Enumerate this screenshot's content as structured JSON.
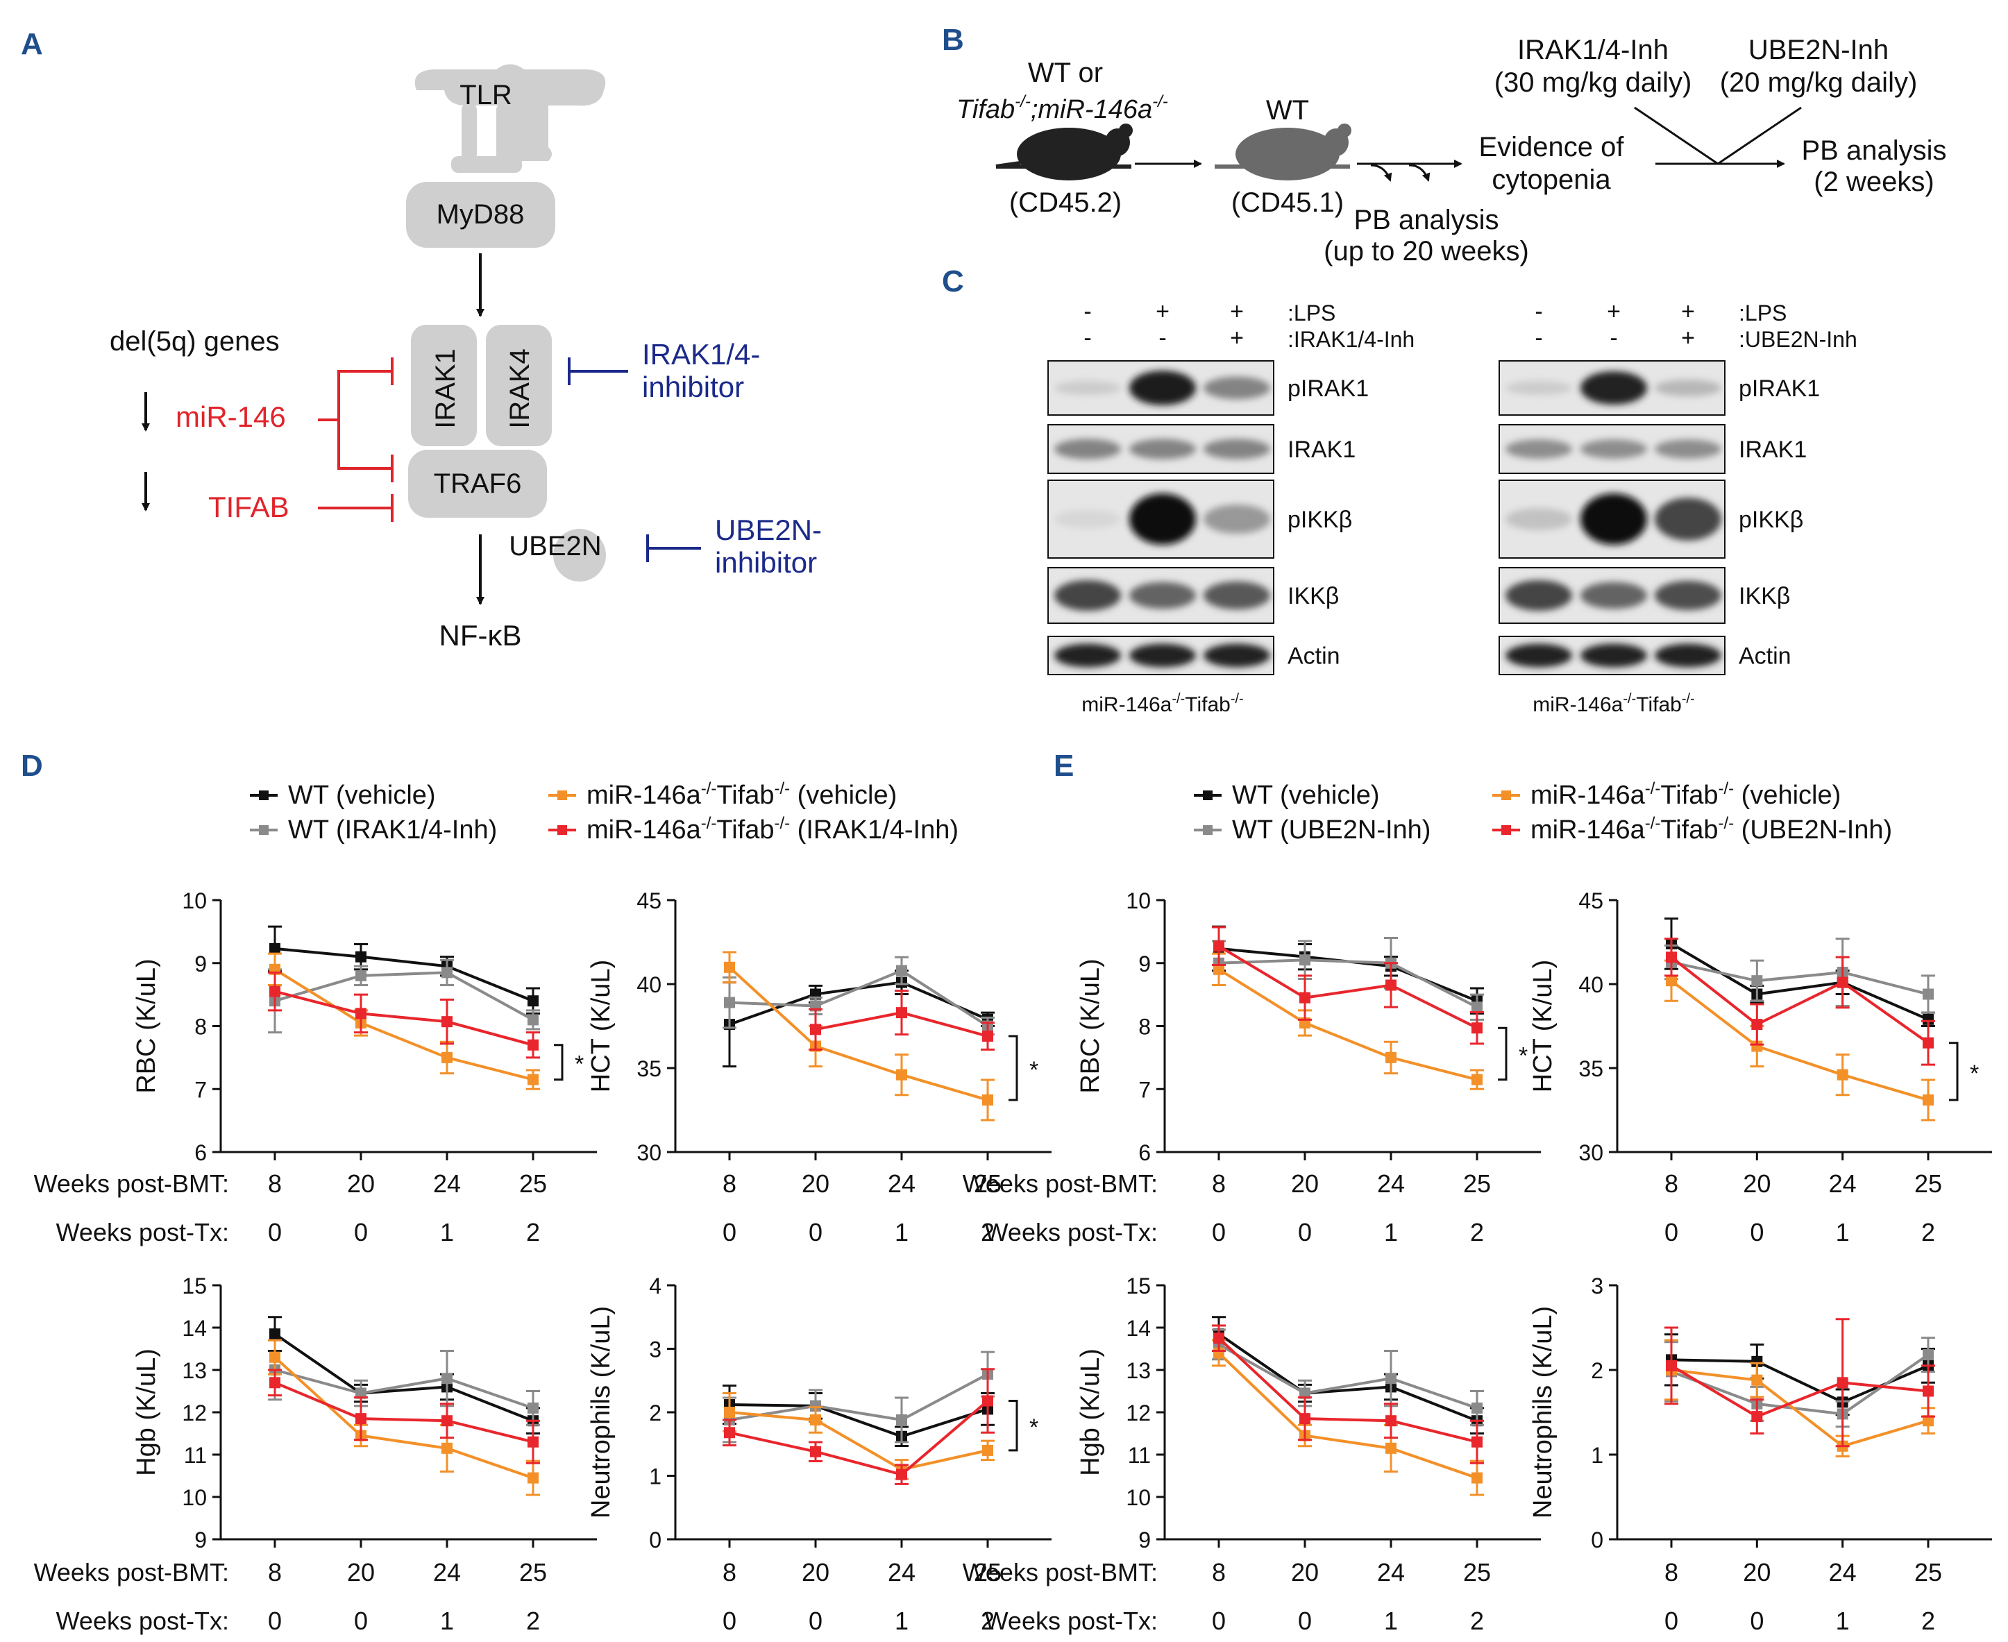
{
  "panels": {
    "A": "A",
    "B": "B",
    "C": "C",
    "D": "D",
    "E": "E"
  },
  "colors": {
    "wt_vehicle": "#111111",
    "wt_inh": "#8a8a8a",
    "ko_vehicle": "#f39028",
    "ko_inh": "#e8262c",
    "inhibit_red": "#e0242b",
    "inhibit_blue": "#1b2a8a",
    "panel_letter": "#1f4e8c"
  },
  "panelA": {
    "tlr": "TLR",
    "myd88": "MyD88",
    "irak1": "IRAK1",
    "irak4": "IRAK4",
    "traf6": "TRAF6",
    "ube2n": "UBE2N",
    "nfkb": "NF-κB",
    "del5q": "del(5q) genes",
    "mir146": "miR-146",
    "tifab": "TIFAB",
    "irak_inh_line1": "IRAK1/4-",
    "irak_inh_line2": "inhibitor",
    "ube2n_inh_line1": "UBE2N-",
    "ube2n_inh_line2": "inhibitor"
  },
  "panelB": {
    "donor_line1": "WT or",
    "donor_line2": "Tifab",
    "donor_line2b": "-/-",
    "donor_line2c": ";miR-146a",
    "donor_line2d": "-/-",
    "donor_marker": "(CD45.2)",
    "recipient": "WT",
    "recipient_marker": "(CD45.1)",
    "pb1_line1": "PB analysis",
    "pb1_line2": "(up to 20 weeks)",
    "evidence_line1": "Evidence of",
    "evidence_line2": "cytopenia",
    "irak_line1": "IRAK1/4-Inh",
    "irak_line2": "(30 mg/kg daily)",
    "ube_line1": "UBE2N-Inh",
    "ube_line2": "(20 mg/kg daily)",
    "pb2_line1": "PB analysis",
    "pb2_line2": "(2 weeks)"
  },
  "panelC": {
    "blots": [
      {
        "lps": [
          "-",
          "+",
          "+"
        ],
        "inh": [
          "-",
          "-",
          "+"
        ],
        "lps_label": ":LPS",
        "inh_label": ":IRAK1/4-Inh",
        "genotype": "miR-146a",
        "genotype_sup1": "-/-",
        "genotype_mid": "Tifab",
        "genotype_sup2": "-/-",
        "rows": [
          {
            "label": "pIRAK1",
            "bands": [
              0.1,
              0.95,
              0.45
            ]
          },
          {
            "label": "IRAK1",
            "bands": [
              0.45,
              0.45,
              0.45
            ]
          },
          {
            "label": "pIKKβ",
            "bands": [
              0.05,
              1.0,
              0.35
            ]
          },
          {
            "label": "IKKβ",
            "bands": [
              0.75,
              0.6,
              0.65
            ]
          },
          {
            "label": "Actin",
            "bands": [
              0.9,
              0.9,
              0.9
            ]
          }
        ]
      },
      {
        "lps": [
          "-",
          "+",
          "+"
        ],
        "inh": [
          "-",
          "-",
          "+"
        ],
        "lps_label": ":LPS",
        "inh_label": ":UBE2N-Inh",
        "genotype": "miR-146a",
        "genotype_sup1": "-/-",
        "genotype_mid": "Tifab",
        "genotype_sup2": "-/-",
        "rows": [
          {
            "label": "pIRAK1",
            "bands": [
              0.1,
              0.9,
              0.2
            ]
          },
          {
            "label": "IRAK1",
            "bands": [
              0.4,
              0.4,
              0.4
            ]
          },
          {
            "label": "pIKKβ",
            "bands": [
              0.15,
              1.0,
              0.75
            ]
          },
          {
            "label": "IKKβ",
            "bands": [
              0.75,
              0.6,
              0.7
            ]
          },
          {
            "label": "Actin",
            "bands": [
              0.9,
              0.9,
              0.9
            ]
          }
        ]
      }
    ]
  },
  "legends": {
    "D": {
      "s1": "WT (vehicle)",
      "s2": "WT (IRAK1/4-Inh)",
      "s3a": "miR-146a",
      "s3b": "Tifab",
      "s3c": " (vehicle)",
      "s4a": "miR-146a",
      "s4b": "Tifab",
      "s4c": " (IRAK1/4-Inh)",
      "sup": "-/-"
    },
    "E": {
      "s1": "WT (vehicle)",
      "s2": "WT (UBE2N-Inh)",
      "s3a": "miR-146a",
      "s3b": "Tifab",
      "s3c": " (vehicle)",
      "s4a": "miR-146a",
      "s4b": "Tifab",
      "s4c": " (UBE2N-Inh)",
      "sup": "-/-"
    }
  },
  "row_labels": {
    "bmt": "Weeks post-BMT:",
    "tx": "Weeks post-Tx:"
  },
  "chart_data": [
    {
      "type": "line",
      "panel": "D",
      "ylabel": "RBC (K/uL)",
      "ylim": [
        6,
        10
      ],
      "yticks": [
        6,
        7,
        8,
        9,
        10
      ],
      "x": [
        "8",
        "20",
        "24",
        "25"
      ],
      "x2": [
        "0",
        "0",
        "1",
        "2"
      ],
      "sig": "*",
      "series": [
        {
          "name": "WT (vehicle)",
          "values": [
            9.23,
            9.1,
            8.95,
            8.4
          ],
          "err": [
            0.35,
            0.2,
            0.15,
            0.2
          ]
        },
        {
          "name": "WT (IRAK1/4-Inh)",
          "values": [
            8.4,
            8.8,
            8.85,
            8.1
          ],
          "err": [
            0.5,
            0.15,
            0.2,
            0.15
          ]
        },
        {
          "name": "miR-146a-/-Tifab-/- (vehicle)",
          "values": [
            8.9,
            8.05,
            7.5,
            7.15
          ],
          "err": [
            0.25,
            0.2,
            0.25,
            0.15
          ]
        },
        {
          "name": "miR-146a-/-Tifab-/- (IRAK1/4-Inh)",
          "values": [
            8.55,
            8.2,
            8.07,
            7.7
          ],
          "err": [
            0.3,
            0.3,
            0.35,
            0.2
          ]
        }
      ]
    },
    {
      "type": "line",
      "panel": "D",
      "ylabel": "HCT (K/uL)",
      "ylim": [
        30,
        45
      ],
      "yticks": [
        30,
        35,
        40,
        45
      ],
      "x": [
        "8",
        "20",
        "24",
        "25"
      ],
      "x2": [
        "0",
        "0",
        "1",
        "2"
      ],
      "sig": "*",
      "series": [
        {
          "name": "WT (vehicle)",
          "values": [
            37.6,
            39.4,
            40.1,
            37.9
          ],
          "err": [
            2.5,
            0.5,
            0.7,
            0.4
          ]
        },
        {
          "name": "WT (IRAK1/4-Inh)",
          "values": [
            38.9,
            38.7,
            40.8,
            37.5
          ],
          "err": [
            1.5,
            0.5,
            0.8,
            0.5
          ]
        },
        {
          "name": "miR-146a-/-Tifab-/- (vehicle)",
          "values": [
            41.0,
            36.3,
            34.6,
            33.1
          ],
          "err": [
            0.9,
            1.2,
            1.2,
            1.2
          ]
        },
        {
          "name": "miR-146a-/-Tifab-/- (IRAK1/4-Inh)",
          "values": [
            null,
            37.3,
            38.3,
            36.9
          ],
          "err": [
            null,
            1.2,
            1.3,
            0.8
          ]
        }
      ]
    },
    {
      "type": "line",
      "panel": "D",
      "ylabel": "Hgb (K/uL)",
      "ylim": [
        9,
        15
      ],
      "yticks": [
        9,
        10,
        11,
        12,
        13,
        14,
        15
      ],
      "x": [
        "8",
        "20",
        "24",
        "25"
      ],
      "x2": [
        "0",
        "0",
        "1",
        "2"
      ],
      "series": [
        {
          "name": "WT (vehicle)",
          "values": [
            13.85,
            12.45,
            12.6,
            11.8
          ],
          "err": [
            0.4,
            0.2,
            0.3,
            0.3
          ]
        },
        {
          "name": "WT (IRAK1/4-Inh)",
          "values": [
            13.0,
            12.45,
            12.8,
            12.1
          ],
          "err": [
            0.7,
            0.3,
            0.65,
            0.4
          ]
        },
        {
          "name": "miR-146a-/-Tifab-/- (vehicle)",
          "values": [
            13.3,
            11.45,
            11.15,
            10.45
          ],
          "err": [
            0.4,
            0.25,
            0.55,
            0.4
          ]
        },
        {
          "name": "miR-146a-/-Tifab-/- (IRAK1/4-Inh)",
          "values": [
            12.7,
            11.85,
            11.8,
            11.3
          ],
          "err": [
            0.3,
            0.5,
            0.4,
            0.5
          ]
        }
      ]
    },
    {
      "type": "line",
      "panel": "D",
      "ylabel": "Neutrophils (K/uL)",
      "ylim": [
        0,
        4
      ],
      "yticks": [
        0,
        1,
        2,
        3,
        4
      ],
      "x": [
        "8",
        "20",
        "24",
        "25"
      ],
      "x2": [
        "0",
        "0",
        "1",
        "2"
      ],
      "sig": "*",
      "series": [
        {
          "name": "WT (vehicle)",
          "values": [
            2.12,
            2.1,
            1.62,
            2.05
          ],
          "err": [
            0.3,
            0.2,
            0.15,
            0.25
          ]
        },
        {
          "name": "WT (IRAK1/4-Inh)",
          "values": [
            1.88,
            2.1,
            1.88,
            2.6
          ],
          "err": [
            0.35,
            0.25,
            0.35,
            0.35
          ]
        },
        {
          "name": "miR-146a-/-Tifab-/- (vehicle)",
          "values": [
            2.0,
            1.88,
            1.1,
            1.4
          ],
          "err": [
            0.3,
            0.2,
            0.15,
            0.15
          ]
        },
        {
          "name": "miR-146a-/-Tifab-/- (IRAK1/4-Inh)",
          "values": [
            1.68,
            1.38,
            1.02,
            2.18
          ],
          "err": [
            0.2,
            0.15,
            0.15,
            0.5
          ]
        }
      ]
    },
    {
      "type": "line",
      "panel": "E",
      "ylabel": "RBC (K/uL)",
      "ylim": [
        6,
        10
      ],
      "yticks": [
        6,
        7,
        8,
        9,
        10
      ],
      "x": [
        "8",
        "20",
        "24",
        "25"
      ],
      "x2": [
        "0",
        "0",
        "1",
        "2"
      ],
      "sig": "*",
      "series": [
        {
          "name": "WT (vehicle)",
          "values": [
            9.23,
            9.1,
            8.95,
            8.4
          ],
          "err": [
            0.35,
            0.2,
            0.15,
            0.2
          ]
        },
        {
          "name": "WT (UBE2N-Inh)",
          "values": [
            9.0,
            9.05,
            9.0,
            8.3
          ],
          "err": [
            0.35,
            0.3,
            0.4,
            0.2
          ]
        },
        {
          "name": "miR-146a-/-Tifab-/- (vehicle)",
          "values": [
            8.9,
            8.05,
            7.5,
            7.15
          ],
          "err": [
            0.25,
            0.2,
            0.25,
            0.15
          ]
        },
        {
          "name": "miR-146a-/-Tifab-/- (UBE2N-Inh)",
          "values": [
            9.27,
            8.45,
            8.65,
            7.97
          ],
          "err": [
            0.3,
            0.35,
            0.35,
            0.25
          ]
        }
      ]
    },
    {
      "type": "line",
      "panel": "E",
      "ylabel": "HCT (K/uL)",
      "ylim": [
        30,
        45
      ],
      "yticks": [
        30,
        35,
        40,
        45
      ],
      "x": [
        "8",
        "20",
        "24",
        "25"
      ],
      "x2": [
        "0",
        "0",
        "1",
        "2"
      ],
      "sig": "*",
      "series": [
        {
          "name": "WT (vehicle)",
          "values": [
            42.4,
            39.4,
            40.1,
            37.9
          ],
          "err": [
            1.5,
            0.5,
            0.7,
            0.4
          ]
        },
        {
          "name": "WT (UBE2N-Inh)",
          "values": [
            41.3,
            40.2,
            40.7,
            39.4
          ],
          "err": [
            1.0,
            1.2,
            2.0,
            1.1
          ]
        },
        {
          "name": "miR-146a-/-Tifab-/- (vehicle)",
          "values": [
            40.2,
            36.3,
            34.6,
            33.1
          ],
          "err": [
            1.2,
            1.2,
            1.2,
            1.2
          ]
        },
        {
          "name": "miR-146a-/-Tifab-/- (UBE2N-Inh)",
          "values": [
            41.6,
            37.6,
            40.1,
            36.5
          ],
          "err": [
            1.1,
            1.2,
            1.5,
            1.3
          ]
        }
      ]
    },
    {
      "type": "line",
      "panel": "E",
      "ylabel": "Hgb (K/uL)",
      "ylim": [
        9,
        15
      ],
      "yticks": [
        9,
        10,
        11,
        12,
        13,
        14,
        15
      ],
      "x": [
        "8",
        "20",
        "24",
        "25"
      ],
      "x2": [
        "0",
        "0",
        "1",
        "2"
      ],
      "series": [
        {
          "name": "WT (vehicle)",
          "values": [
            13.85,
            12.45,
            12.6,
            11.8
          ],
          "err": [
            0.4,
            0.2,
            0.3,
            0.3
          ]
        },
        {
          "name": "WT (UBE2N-Inh)",
          "values": [
            13.6,
            12.45,
            12.8,
            12.1
          ],
          "err": [
            0.35,
            0.3,
            0.65,
            0.4
          ]
        },
        {
          "name": "miR-146a-/-Tifab-/- (vehicle)",
          "values": [
            13.4,
            11.45,
            11.15,
            10.45
          ],
          "err": [
            0.3,
            0.25,
            0.55,
            0.4
          ]
        },
        {
          "name": "miR-146a-/-Tifab-/- (UBE2N-Inh)",
          "values": [
            13.75,
            11.85,
            11.8,
            11.3
          ],
          "err": [
            0.3,
            0.5,
            0.4,
            0.5
          ]
        }
      ]
    },
    {
      "type": "line",
      "panel": "E",
      "ylabel": "Neutrophils (K/uL)",
      "ylim": [
        0,
        3
      ],
      "yticks": [
        0,
        1,
        2,
        3
      ],
      "x": [
        "8",
        "20",
        "24",
        "25"
      ],
      "x2": [
        "0",
        "0",
        "1",
        "2"
      ],
      "series": [
        {
          "name": "WT (vehicle)",
          "values": [
            2.12,
            2.1,
            1.62,
            2.05
          ],
          "err": [
            0.3,
            0.2,
            0.15,
            0.2
          ]
        },
        {
          "name": "WT (UBE2N-Inh)",
          "values": [
            1.98,
            1.6,
            1.48,
            2.18
          ],
          "err": [
            0.35,
            0.2,
            0.15,
            0.2
          ]
        },
        {
          "name": "miR-146a-/-Tifab-/- (vehicle)",
          "values": [
            2.0,
            1.88,
            1.1,
            1.4
          ],
          "err": [
            0.35,
            0.2,
            0.12,
            0.15
          ]
        },
        {
          "name": "miR-146a-/-Tifab-/- (UBE2N-Inh)",
          "values": [
            2.05,
            1.45,
            1.85,
            1.75
          ],
          "err": [
            0.45,
            0.2,
            0.75,
            0.3
          ]
        }
      ]
    }
  ]
}
